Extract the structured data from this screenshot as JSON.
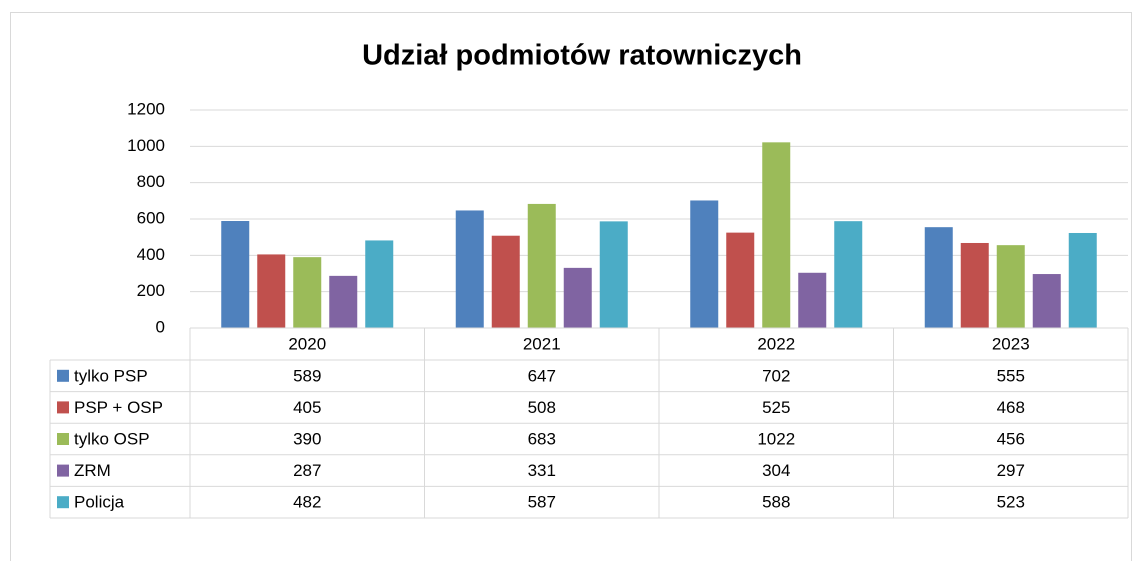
{
  "chart_data": {
    "type": "bar",
    "title": "Udział podmiotów ratowniczych",
    "categories": [
      "2020",
      "2021",
      "2022",
      "2023"
    ],
    "series": [
      {
        "name": "tylko PSP",
        "color": "#4f81bd",
        "values": [
          589,
          647,
          702,
          555
        ]
      },
      {
        "name": "PSP + OSP",
        "color": "#c0504d",
        "values": [
          405,
          508,
          525,
          468
        ]
      },
      {
        "name": "tylko OSP",
        "color": "#9bbb59",
        "values": [
          390,
          683,
          1022,
          456
        ]
      },
      {
        "name": "ZRM",
        "color": "#8064a2",
        "values": [
          287,
          331,
          304,
          297
        ]
      },
      {
        "name": "Policja",
        "color": "#4bacc6",
        "values": [
          482,
          587,
          588,
          523
        ]
      }
    ],
    "ylim": [
      0,
      1200
    ],
    "yticks": [
      0,
      200,
      400,
      600,
      800,
      1000,
      1200
    ],
    "grid": true,
    "legend": "data-table"
  }
}
